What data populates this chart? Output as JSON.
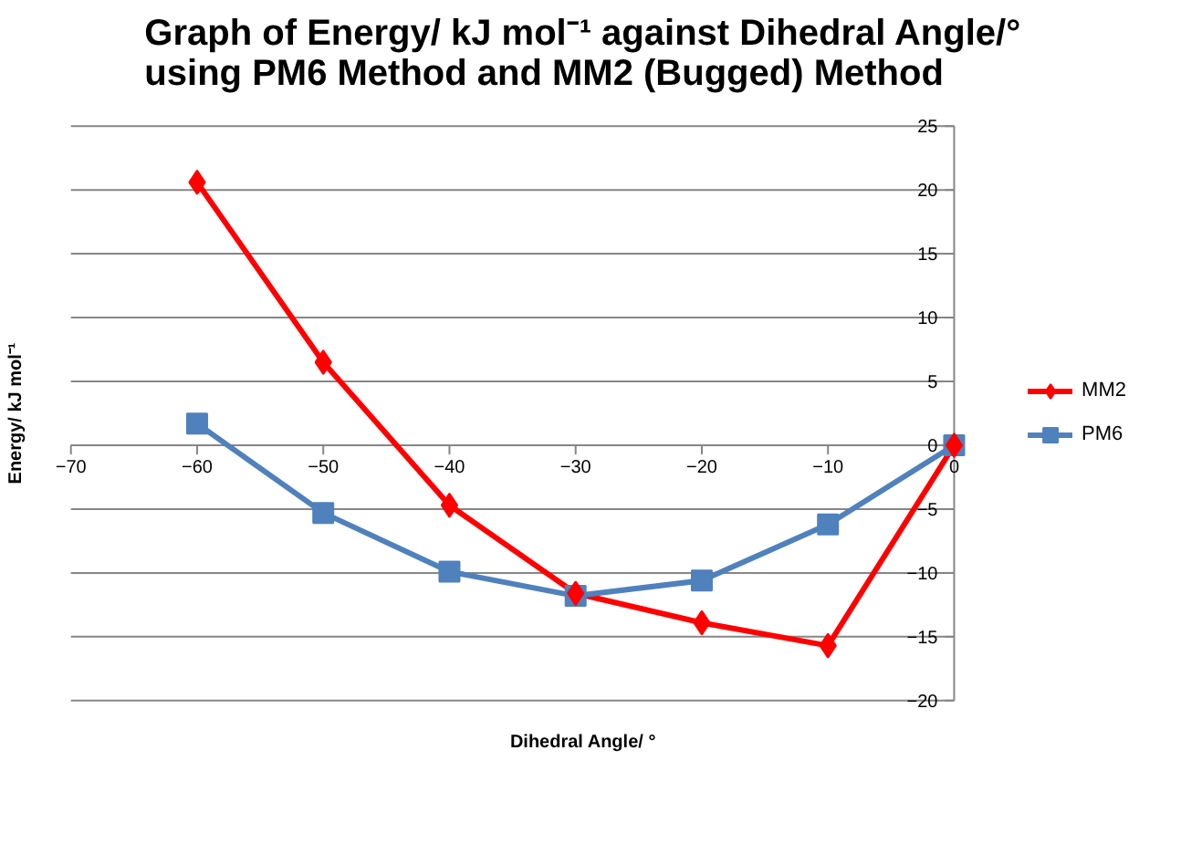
{
  "chart_data": {
    "type": "line",
    "title": "Graph of Energy/ kJ mol⁻¹ against Dihedral Angle/°\nusing PM6 Method  and MM2 (Bugged) Method",
    "xlabel": "Dihedral Angle/ °",
    "ylabel": "Energy/ kJ mol⁻¹",
    "x": [
      -60,
      -50,
      -40,
      -30,
      -20,
      -10,
      0
    ],
    "series": [
      {
        "name": "MM2",
        "color": "#ff0000",
        "marker": "diamond",
        "values": [
          20.6,
          6.5,
          -4.7,
          -11.6,
          -13.9,
          -15.7,
          0
        ]
      },
      {
        "name": "PM6",
        "color": "#4f81bd",
        "marker": "square",
        "values": [
          1.7,
          -5.3,
          -9.9,
          -11.8,
          -10.6,
          -6.2,
          0
        ]
      }
    ],
    "xlim": [
      -70,
      0
    ],
    "xticks": [
      -70,
      -60,
      -50,
      -40,
      -30,
      -20,
      -10,
      0
    ],
    "ylim": [
      -20,
      25
    ],
    "yticks": [
      -20,
      -15,
      -10,
      -5,
      0,
      5,
      10,
      15,
      20,
      25
    ],
    "grid": "y",
    "legend": "right",
    "line_style": "solid"
  }
}
